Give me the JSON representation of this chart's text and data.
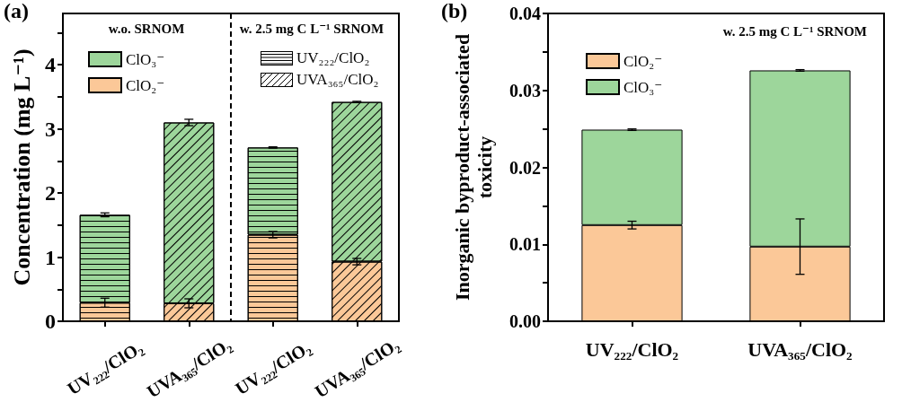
{
  "chart_data": [
    {
      "type": "bar",
      "title": "(a)",
      "ylabel": "Concentration (mg L⁻¹)",
      "categories": [
        "UV₂₂₂/ClO₂",
        "UVA₃₆₅/ClO₂",
        "UV₂₂₂/ClO₂",
        "UVA₃₆₅/ClO₂"
      ],
      "series": [
        {
          "name": "ClO₂⁻",
          "color": "#fbc898",
          "values": [
            0.29,
            0.28,
            1.35,
            0.93
          ],
          "errors": [
            0.07,
            0.07,
            0.05,
            0.05
          ]
        },
        {
          "name": "ClO₃⁻",
          "color": "#9dd69b",
          "values": [
            1.37,
            2.82,
            1.36,
            2.49
          ],
          "errors": [
            0.03,
            0.05,
            0.01,
            0.01
          ]
        }
      ],
      "stacked": true,
      "ylim": [
        0,
        4.8
      ],
      "yticks": [
        0,
        {
          "value": 0.5,
          "label": null
        },
        1,
        {
          "value": 1.5,
          "label": null
        },
        2,
        {
          "value": 2.5,
          "label": null
        },
        3,
        {
          "value": 3.5,
          "label": null
        },
        4,
        {
          "value": 4.5,
          "label": null
        }
      ],
      "annotations": [
        "w.o. SRNOM",
        "w. 2.5 mg C L⁻¹ SRNOM",
        "UV₂₂₂/ClO₂",
        "UVA₃₆₅/ClO₂"
      ],
      "legend": "top left"
    },
    {
      "type": "bar",
      "title": "(b)",
      "ylabel": "Inorganic byproduct-associated\ntoxicity",
      "categories": [
        "UV₂₂₂/ClO₂",
        "UVA₃₆₅/ClO₂"
      ],
      "series": [
        {
          "name": "ClO₂⁻",
          "color": "#fbc898",
          "values": [
            0.0125,
            0.0097
          ],
          "errors": [
            0.0005,
            0.0036
          ]
        },
        {
          "name": "ClO₃⁻",
          "color": "#9dd69b",
          "values": [
            0.0124,
            0.0229
          ],
          "errors": [
            0.0001,
            0.0001
          ]
        }
      ],
      "stacked": true,
      "ylim": [
        0,
        0.04
      ],
      "yticks": [
        {
          "value": 0,
          "label": "0.00"
        },
        {
          "value": 0.005,
          "label": null
        },
        0.01,
        {
          "value": 0.015,
          "label": null
        },
        0.02,
        {
          "value": 0.025,
          "label": null
        },
        0.03,
        {
          "value": 0.035,
          "label": null
        },
        0.04
      ],
      "annotations": [
        "w. 2.5 mg C L⁻¹ SRNOM"
      ],
      "legend": "top left"
    }
  ]
}
